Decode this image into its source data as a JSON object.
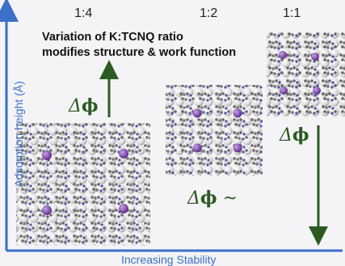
{
  "ratios": [
    "1:4",
    "1:2",
    "1:1"
  ],
  "headline": {
    "line1": "Variation of K:TCNQ ratio",
    "line2": "modifies structure & work function"
  },
  "y_axis_label": "Adsorption height (Å)",
  "x_axis_label": "Increasing Stability",
  "dphi_labels": [
    {
      "delta": "Δ",
      "phi": "ϕ",
      "suffix": ""
    },
    {
      "delta": "Δ",
      "phi": "ϕ",
      "suffix": " ~"
    },
    {
      "delta": "Δ",
      "phi": "ϕ",
      "suffix": ""
    }
  ],
  "colors": {
    "axis": "#3c6fc7",
    "arrow": "#2c5b22",
    "substrate_atom": "#e8e8e8",
    "carbon": "#555555",
    "nitrogen": "#3a3a9c",
    "potassium": "#7b3fa8"
  },
  "arrows": [
    {
      "name": "work-function-increase",
      "direction": "up"
    },
    {
      "name": "work-function-decrease",
      "direction": "down"
    }
  ]
}
